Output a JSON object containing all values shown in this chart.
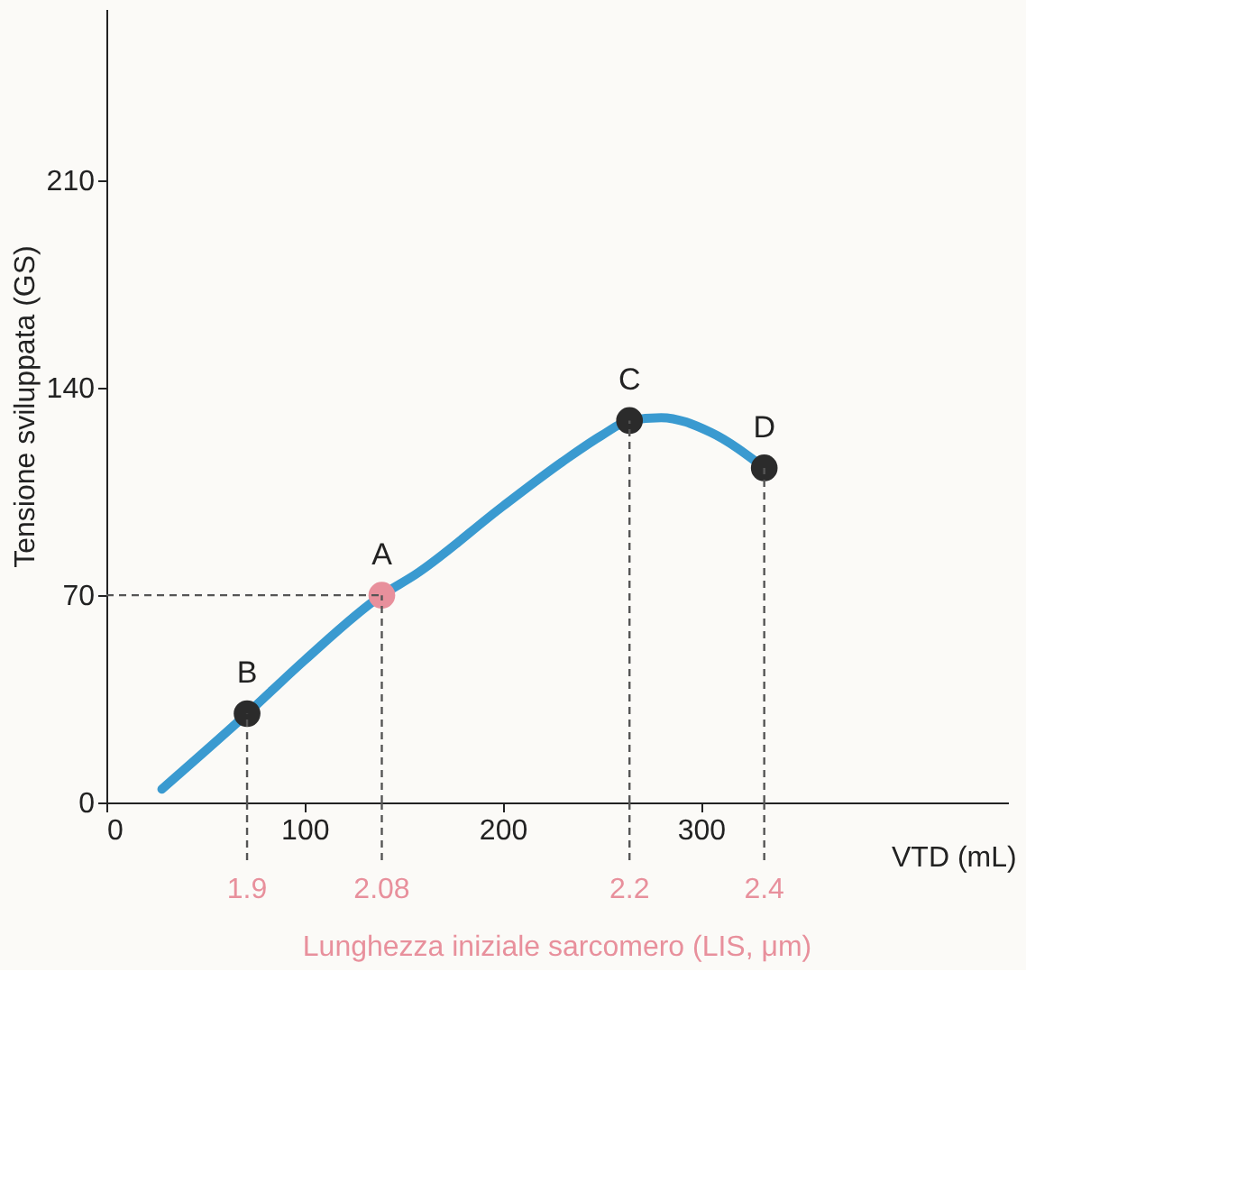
{
  "chart_data": {
    "type": "line",
    "ylabel": "Tensione sviluppata (GS)",
    "xlabel": "VTD (mL)",
    "x2label": "Lunghezza iniziale sarcomero (LIS, μm)",
    "xlim": [
      0,
      455
    ],
    "xticks": [
      0,
      100,
      200,
      300
    ],
    "ylim": [
      0,
      268
    ],
    "yticks": [
      0,
      70,
      140,
      210
    ],
    "series": [
      {
        "color": "#3a9ad0",
        "x": [
          28,
          71,
          100,
          139,
          156,
          200,
          230,
          250,
          264,
          280,
          305,
          332
        ],
        "values": [
          4.5,
          30,
          48,
          70,
          77,
          100,
          115,
          124,
          129,
          130,
          125,
          113
        ]
      },
      {
        "type": "scatter",
        "marker": "circle",
        "colors": [
          "#2b2b2b",
          "#e8909c",
          "#2b2b2b",
          "#2b2b2b"
        ],
        "x": [
          71,
          139,
          264,
          332
        ],
        "values": [
          30,
          70,
          129,
          113
        ]
      }
    ],
    "ref_lines": [
      {
        "axis": "x",
        "value": 71,
        "line_style": "dashed"
      },
      {
        "axis": "x",
        "value": 139,
        "line_style": "dashed"
      },
      {
        "axis": "x",
        "value": 264,
        "line_style": "dashed"
      },
      {
        "axis": "x",
        "value": 332,
        "line_style": "dashed"
      },
      {
        "axis": "y",
        "value": 70,
        "line_style": "dashed"
      }
    ],
    "annotations": [
      {
        "text": "B",
        "x": 71,
        "y": 30
      },
      {
        "text": "A",
        "x": 139,
        "y": 70
      },
      {
        "text": "C",
        "x": 264,
        "y": 129
      },
      {
        "text": "D",
        "x": 332,
        "y": 113
      },
      {
        "text": "1.9",
        "x": 71
      },
      {
        "text": "2.08",
        "x": 139
      },
      {
        "text": "2.2",
        "x": 264
      },
      {
        "text": "2.4",
        "x": 332
      }
    ],
    "grid": false
  }
}
